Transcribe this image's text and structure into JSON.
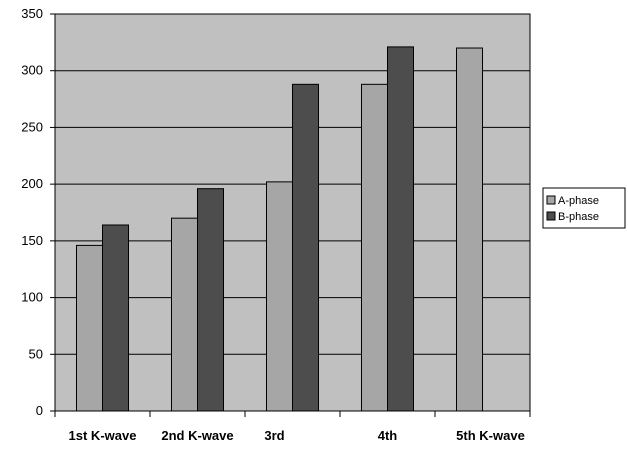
{
  "chart_data": {
    "type": "bar",
    "title": "",
    "xlabel": "",
    "ylabel": "",
    "ylim": [
      0,
      350
    ],
    "yticks": [
      "0",
      "50",
      "100",
      "150",
      "200",
      "250",
      "300",
      "350"
    ],
    "categories": [
      "1st K-wave",
      "2nd K-wave",
      "3rd",
      "4th",
      "5th K-wave"
    ],
    "series": [
      {
        "name": "A-phase",
        "values": [
          146,
          170,
          202,
          288,
          320
        ],
        "color": "#a6a6a6"
      },
      {
        "name": "B-phase",
        "values": [
          164,
          196,
          288,
          321,
          null
        ],
        "color": "#4d4d4d"
      }
    ],
    "plot_background": "#c0c0c0",
    "grid": true,
    "legend_position": "right"
  }
}
